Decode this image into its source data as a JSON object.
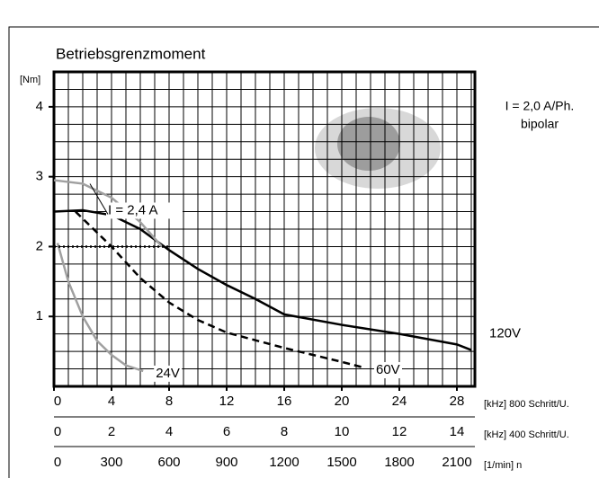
{
  "chart_data": {
    "type": "line",
    "title": "Betriebsgrenzmoment",
    "y_label": "[Nm]",
    "annotations": [
      "I = 2,0 A/Ph.",
      "bipolar"
    ],
    "ylim": [
      0,
      4.5
    ],
    "yticks": [
      1,
      2,
      3,
      4
    ],
    "xlim": [
      0,
      29.25
    ],
    "xticks": [
      0,
      4,
      8,
      12,
      16,
      20,
      24,
      28
    ],
    "x_label": "[kHz] 800 Schritt/U.",
    "xlim2": [
      0,
      14.625
    ],
    "xticks2": [
      0,
      2,
      4,
      6,
      8,
      10,
      12,
      14
    ],
    "x2_label": "[kHz] 400 Schritt/U.",
    "xlim3": [
      0,
      2193.75
    ],
    "xticks3": [
      0,
      300,
      600,
      900,
      1200,
      1500,
      1800,
      2100
    ],
    "x3_label": "[1/min] n",
    "grid": true,
    "series": [
      {
        "name": "120V",
        "color": "#000000",
        "style": "solid",
        "x": [
          0,
          2,
          4,
          6,
          8,
          10,
          12,
          14,
          16,
          20,
          24,
          28,
          29
        ],
        "values": [
          2.5,
          2.52,
          2.45,
          2.25,
          1.95,
          1.68,
          1.45,
          1.25,
          1.03,
          0.88,
          0.75,
          0.6,
          0.52
        ]
      },
      {
        "name": "60V",
        "color": "#000000",
        "style": "dashed",
        "x": [
          1.5,
          4,
          6,
          8,
          10,
          12,
          16,
          20,
          21.5
        ],
        "values": [
          2.5,
          2.0,
          1.55,
          1.2,
          0.95,
          0.77,
          0.55,
          0.35,
          0.27
        ]
      },
      {
        "name": "24V",
        "color": "#a0a0a0",
        "style": "solid",
        "x": [
          0.25,
          1,
          2,
          3,
          4,
          5,
          6.2
        ],
        "values": [
          2.05,
          1.5,
          1.0,
          0.65,
          0.45,
          0.3,
          0.22
        ]
      },
      {
        "name": "I = 2,4 A",
        "color": "#a0a0a0",
        "style": "solid",
        "x": [
          0,
          2,
          4,
          6,
          7.5
        ],
        "values": [
          2.95,
          2.9,
          2.7,
          2.35,
          2.0
        ]
      },
      {
        "color": "#000000",
        "style": "dotted",
        "x": [
          0,
          8
        ],
        "values": [
          2,
          2
        ]
      }
    ]
  }
}
